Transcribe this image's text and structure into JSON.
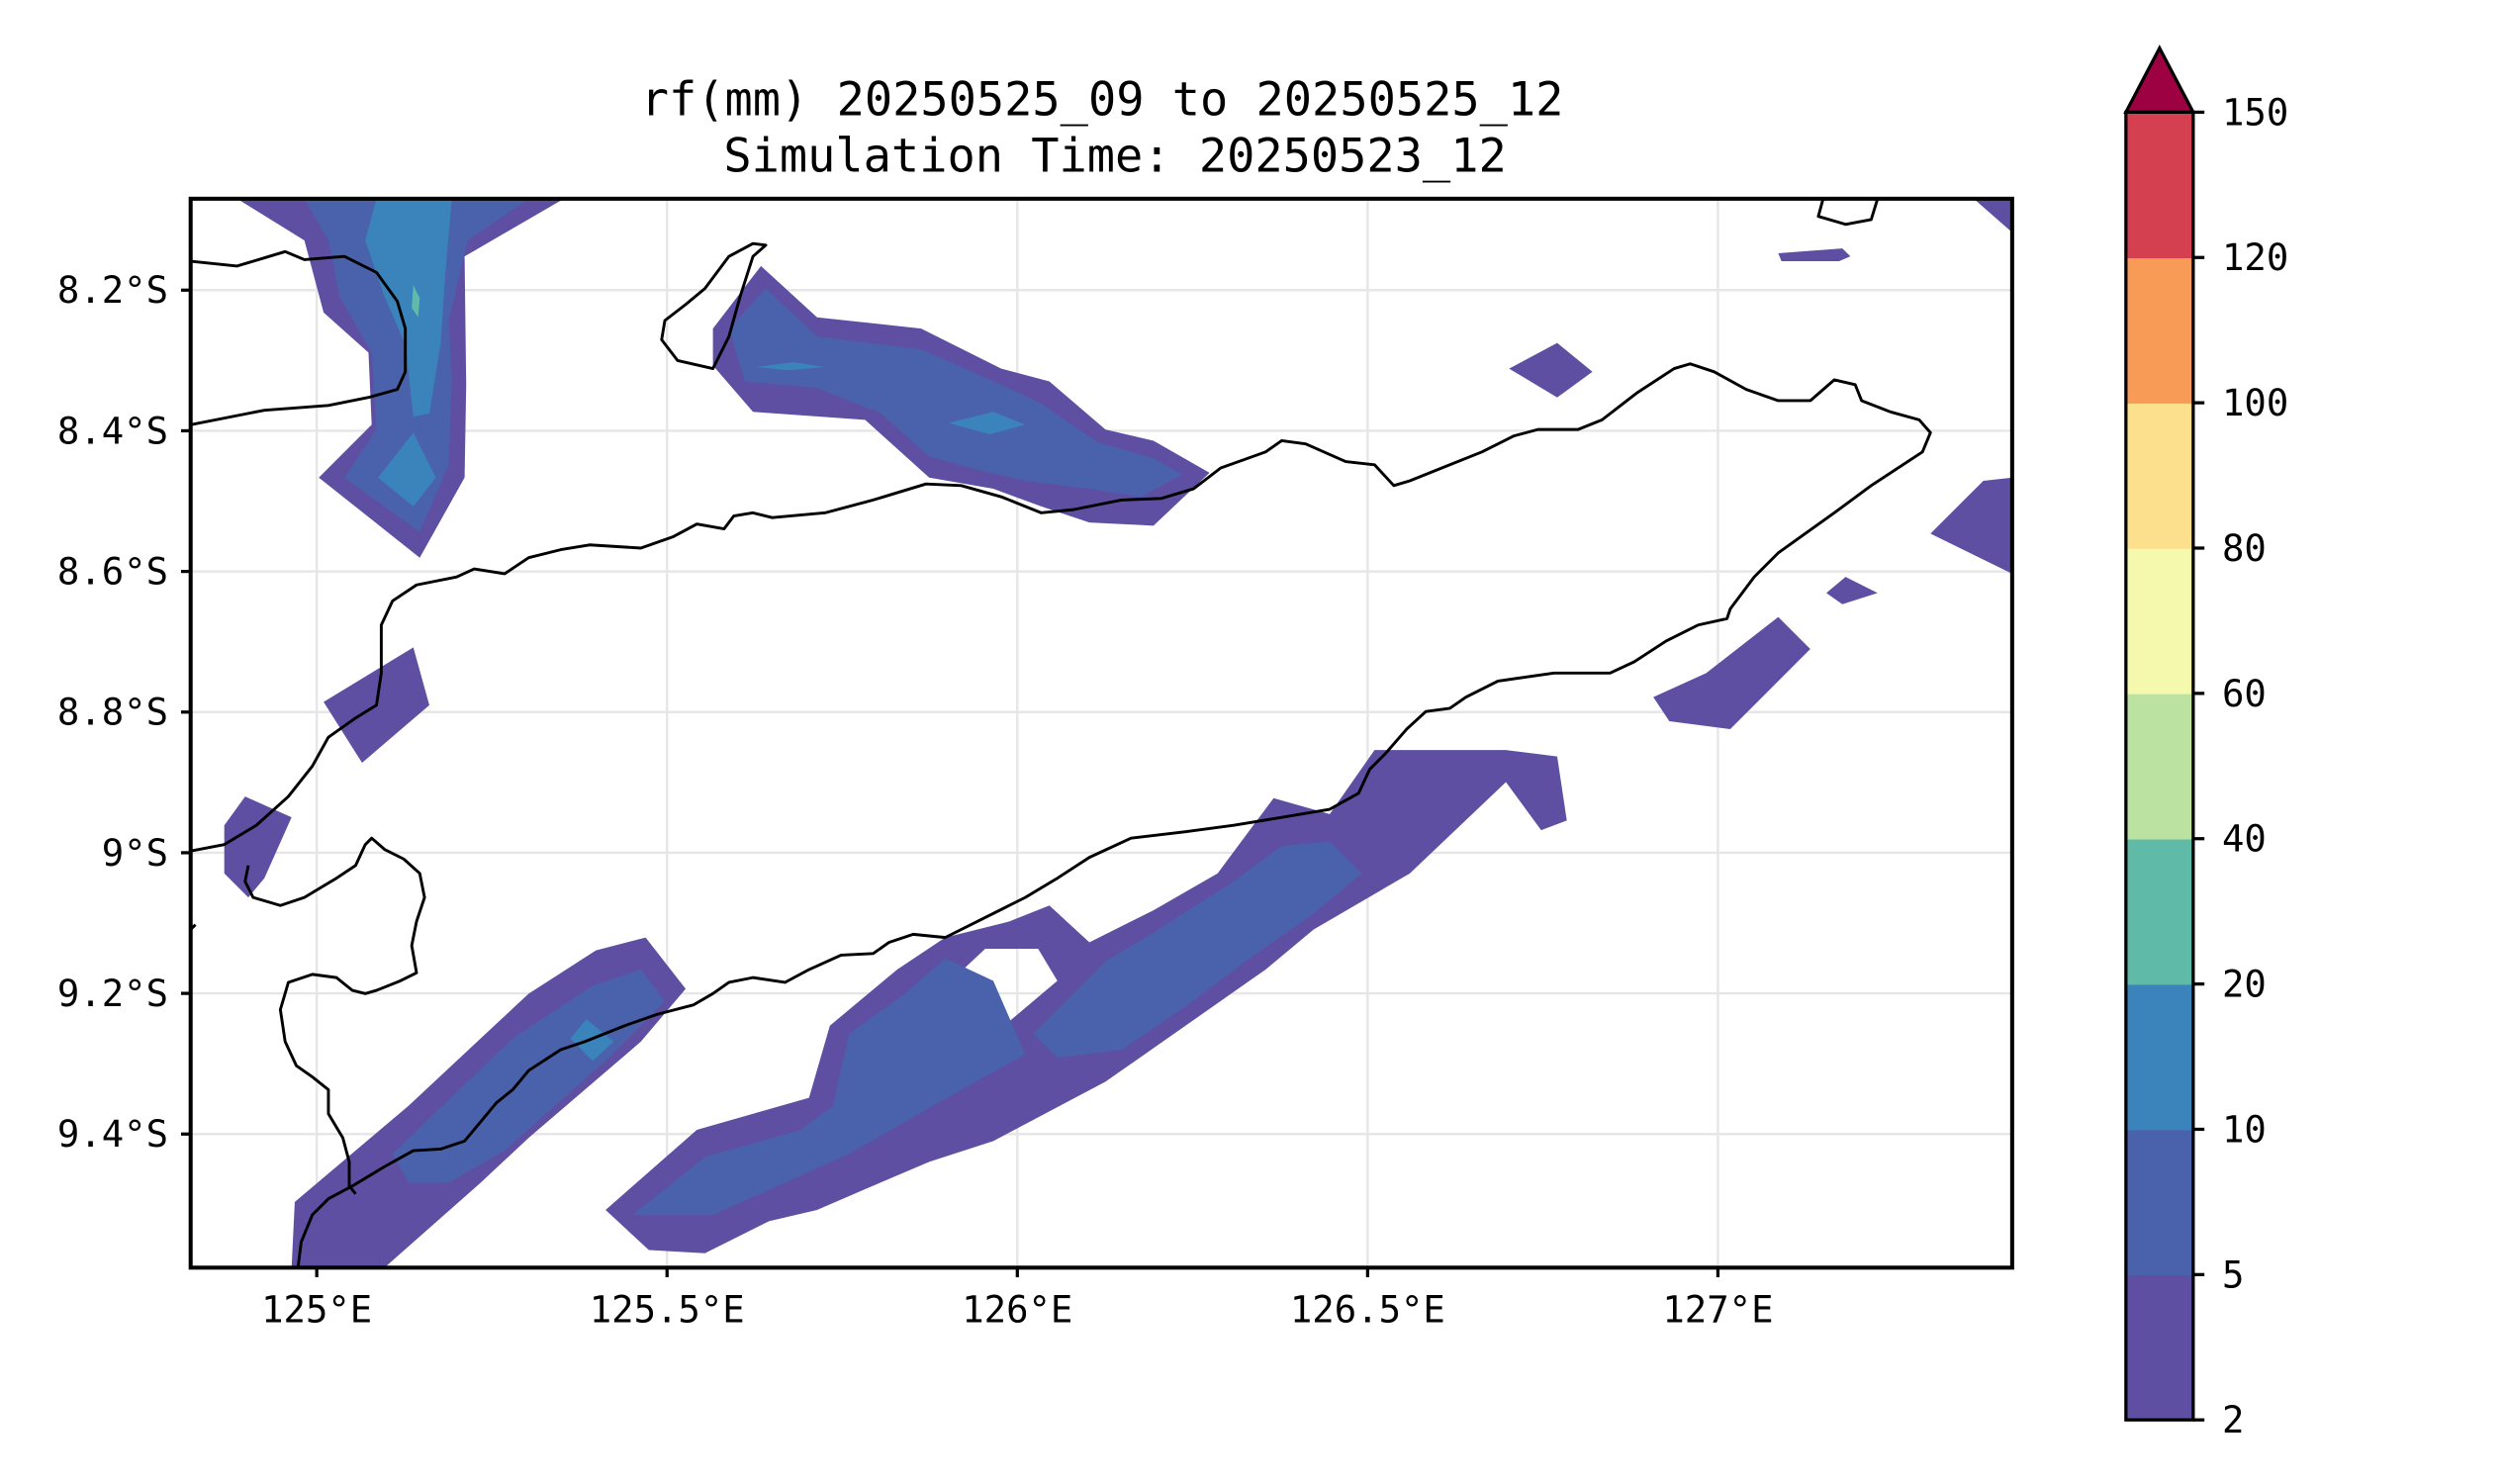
{
  "figure": {
    "title_line1": "rf(mm) 20250525_09 to 20250525_12",
    "title_line2": "Simulation Time: 20250523_12"
  },
  "map": {
    "lon_range": [
      124.82,
      127.42
    ],
    "lat_range": [
      -9.59,
      -8.07
    ],
    "x_ticks": [
      {
        "value": 125.0,
        "label": "125°E"
      },
      {
        "value": 125.5,
        "label": "125.5°E"
      },
      {
        "value": 126.0,
        "label": "126°E"
      },
      {
        "value": 126.5,
        "label": "126.5°E"
      },
      {
        "value": 127.0,
        "label": "127°E"
      }
    ],
    "y_ticks": [
      {
        "value": -8.2,
        "label": "8.2°S"
      },
      {
        "value": -8.4,
        "label": "8.4°S"
      },
      {
        "value": -8.6,
        "label": "8.6°S"
      },
      {
        "value": -8.8,
        "label": "8.8°S"
      },
      {
        "value": -9.0,
        "label": "9°S"
      },
      {
        "value": -9.2,
        "label": "9.2°S"
      },
      {
        "value": -9.4,
        "label": "9.4°S"
      }
    ],
    "gridlines": true
  },
  "colorbar": {
    "extend": "max",
    "extend_color": "#9e0142",
    "levels": [
      {
        "label": "2",
        "color": "#5e4fa2"
      },
      {
        "label": "5",
        "color": "#4a62ab"
      },
      {
        "label": "10",
        "color": "#3a84bb"
      },
      {
        "label": "20",
        "color": "#5fbba8"
      },
      {
        "label": "40",
        "color": "#bbe2a0"
      },
      {
        "label": "60",
        "color": "#f4f9ae"
      },
      {
        "label": "80",
        "color": "#fce08d"
      },
      {
        "label": "100",
        "color": "#f89b57"
      },
      {
        "label": "120",
        "color": "#d4404f"
      },
      {
        "label": "150",
        "color": ""
      }
    ]
  },
  "colors": {
    "level_2_5": "#5e4fa2",
    "level_5_10": "#4a62ab",
    "level_10_20": "#3a84bb",
    "level_20_40": "#5fbba8"
  }
}
